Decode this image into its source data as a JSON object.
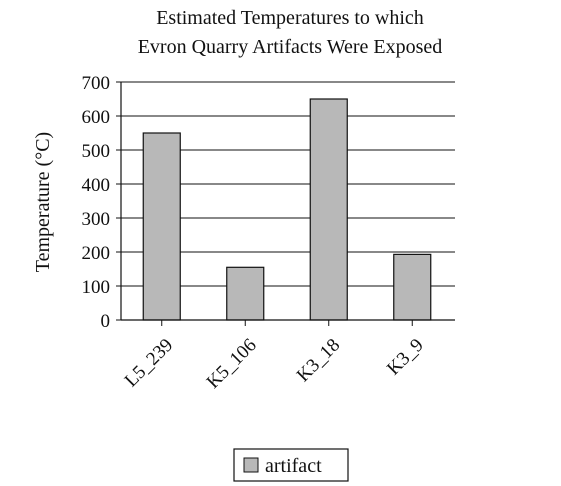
{
  "chart_data": {
    "type": "bar",
    "title_lines": [
      "Estimated Temperatures to which",
      "Evron Quarry Artifacts Were Exposed"
    ],
    "xlabel": "",
    "ylabel": "Temperature (°C)",
    "ylim": [
      0,
      700
    ],
    "yticks": [
      0,
      100,
      200,
      300,
      400,
      500,
      600,
      700
    ],
    "categories": [
      "L5_239",
      "K5_106",
      "K3_18",
      "K3_9"
    ],
    "series": [
      {
        "name": "artifact",
        "values": [
          550,
          155,
          650,
          193
        ],
        "color": "#b8b8b8"
      }
    ],
    "grid": true,
    "legend_position": "bottom-center"
  }
}
